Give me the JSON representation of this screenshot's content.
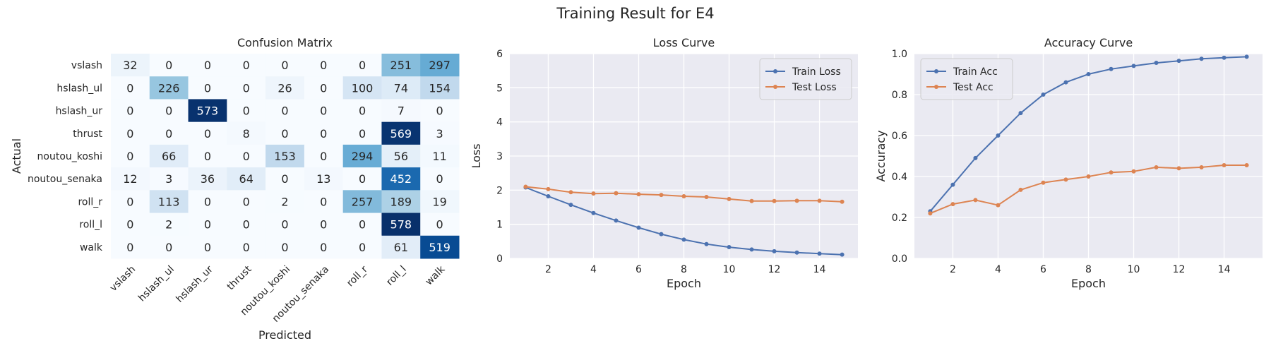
{
  "figure": {
    "title": "Training Result for E4"
  },
  "chart_data": [
    {
      "type": "heatmap",
      "title": "Confusion Matrix",
      "xlabel": "Predicted",
      "ylabel": "Actual",
      "rows": [
        "vslash",
        "hslash_ul",
        "hslash_ur",
        "thrust",
        "noutou_koshi",
        "noutou_senaka",
        "roll_r",
        "roll_l",
        "walk"
      ],
      "cols": [
        "vslash",
        "hslash_ul",
        "hslash_ur",
        "thrust",
        "noutou_koshi",
        "noutou_senaka",
        "roll_r",
        "roll_l",
        "walk"
      ],
      "values": [
        [
          32,
          0,
          0,
          0,
          0,
          0,
          0,
          251,
          297
        ],
        [
          0,
          226,
          0,
          0,
          26,
          0,
          100,
          74,
          154
        ],
        [
          0,
          0,
          573,
          0,
          0,
          0,
          0,
          7,
          0
        ],
        [
          0,
          0,
          0,
          8,
          0,
          0,
          0,
          569,
          3
        ],
        [
          0,
          66,
          0,
          0,
          153,
          0,
          294,
          56,
          11
        ],
        [
          12,
          3,
          36,
          64,
          0,
          13,
          0,
          452,
          0
        ],
        [
          0,
          113,
          0,
          0,
          2,
          0,
          257,
          189,
          19
        ],
        [
          0,
          2,
          0,
          0,
          0,
          0,
          0,
          578,
          0
        ],
        [
          0,
          0,
          0,
          0,
          0,
          0,
          0,
          61,
          519
        ]
      ],
      "colormap": "Blues",
      "colorbar": false
    },
    {
      "type": "line",
      "title": "Loss Curve",
      "xlabel": "Epoch",
      "ylabel": "Loss",
      "xlim": [
        0.3,
        15.7
      ],
      "ylim": [
        0,
        6
      ],
      "xticks": [
        2,
        4,
        6,
        8,
        10,
        12,
        14
      ],
      "yticks": [
        0,
        1,
        2,
        3,
        4,
        5,
        6
      ],
      "grid": true,
      "legend": "top-right",
      "x": [
        1,
        2,
        3,
        4,
        5,
        6,
        7,
        8,
        9,
        10,
        11,
        12,
        13,
        14,
        15
      ],
      "series": [
        {
          "name": "Train Loss",
          "color": "#4c72b0",
          "values": [
            2.08,
            1.82,
            1.57,
            1.33,
            1.11,
            0.9,
            0.71,
            0.55,
            0.42,
            0.33,
            0.26,
            0.21,
            0.17,
            0.14,
            0.11
          ]
        },
        {
          "name": "Test Loss",
          "color": "#dd8452",
          "values": [
            2.1,
            2.03,
            1.94,
            1.9,
            1.91,
            1.88,
            1.86,
            1.82,
            1.8,
            1.74,
            1.68,
            1.68,
            1.69,
            1.69,
            1.66
          ]
        }
      ]
    },
    {
      "type": "line",
      "title": "Accuracy Curve",
      "xlabel": "Epoch",
      "ylabel": "Accuracy",
      "xlim": [
        0.3,
        15.7
      ],
      "ylim": [
        0,
        1
      ],
      "xticks": [
        2,
        4,
        6,
        8,
        10,
        12,
        14
      ],
      "yticks": [
        0.0,
        0.2,
        0.4,
        0.6,
        0.8,
        1.0
      ],
      "ytick_labels": [
        "0.0",
        "0.2",
        "0.4",
        "0.6",
        "0.8",
        "1.0"
      ],
      "grid": true,
      "legend": "top-left",
      "x": [
        1,
        2,
        3,
        4,
        5,
        6,
        7,
        8,
        9,
        10,
        11,
        12,
        13,
        14,
        15
      ],
      "series": [
        {
          "name": "Train Acc",
          "color": "#4c72b0",
          "values": [
            0.23,
            0.36,
            0.49,
            0.6,
            0.71,
            0.8,
            0.86,
            0.9,
            0.925,
            0.94,
            0.955,
            0.965,
            0.975,
            0.98,
            0.985
          ]
        },
        {
          "name": "Test Acc",
          "color": "#dd8452",
          "values": [
            0.22,
            0.265,
            0.285,
            0.26,
            0.335,
            0.37,
            0.385,
            0.4,
            0.42,
            0.425,
            0.445,
            0.44,
            0.445,
            0.455,
            0.455
          ]
        }
      ]
    }
  ]
}
